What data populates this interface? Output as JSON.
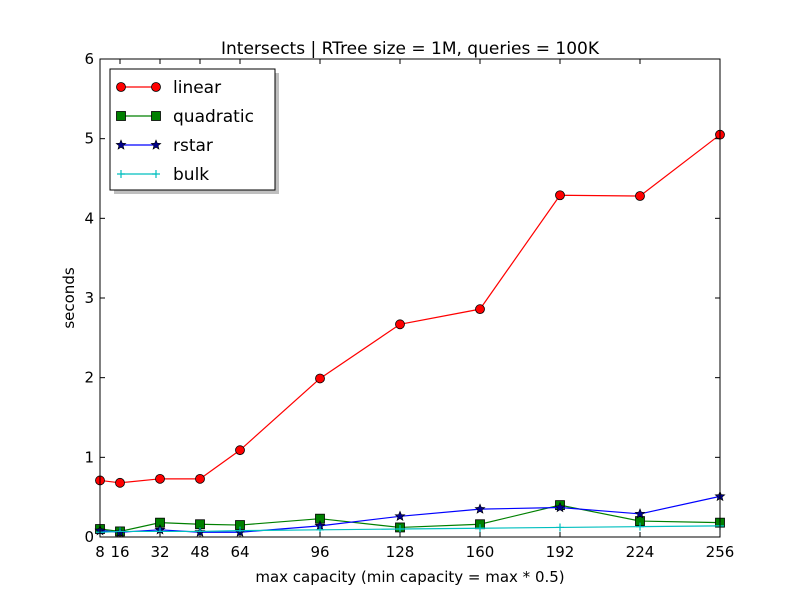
{
  "chart_data": {
    "type": "line",
    "title": "Intersects | RTree size = 1M, queries = 100K",
    "xlabel": "max capacity (min capacity = max * 0.5)",
    "ylabel": "seconds",
    "x": [
      8,
      16,
      32,
      48,
      64,
      96,
      128,
      160,
      192,
      224,
      256
    ],
    "xticks": [
      8,
      16,
      32,
      48,
      64,
      96,
      128,
      160,
      192,
      224,
      256
    ],
    "xlim": [
      8,
      256
    ],
    "ylim": [
      0,
      6
    ],
    "yticks": [
      0,
      1,
      2,
      3,
      4,
      5,
      6
    ],
    "grid": false,
    "legend": "top-left",
    "series": [
      {
        "name": "linear",
        "color": "#ff0000",
        "marker": "circle",
        "markerColor": "#ff0000",
        "values": [
          0.71,
          0.68,
          0.73,
          0.73,
          1.09,
          1.99,
          2.67,
          2.86,
          4.29,
          4.28,
          5.05
        ]
      },
      {
        "name": "quadratic",
        "color": "#008000",
        "marker": "square",
        "markerColor": "#008000",
        "values": [
          0.1,
          0.07,
          0.18,
          0.16,
          0.15,
          0.23,
          0.12,
          0.16,
          0.4,
          0.2,
          0.18
        ]
      },
      {
        "name": "rstar",
        "color": "#0000ff",
        "marker": "star",
        "markerColor": "#00008b",
        "values": [
          0.08,
          0.06,
          0.09,
          0.06,
          0.06,
          0.14,
          0.26,
          0.35,
          0.37,
          0.29,
          0.51
        ]
      },
      {
        "name": "bulk",
        "color": "#00bfbf",
        "marker": "plus",
        "markerColor": "#00bfbf",
        "values": [
          0.06,
          0.07,
          0.07,
          0.07,
          0.08,
          0.09,
          0.1,
          0.11,
          0.12,
          0.13,
          0.14
        ]
      }
    ]
  }
}
